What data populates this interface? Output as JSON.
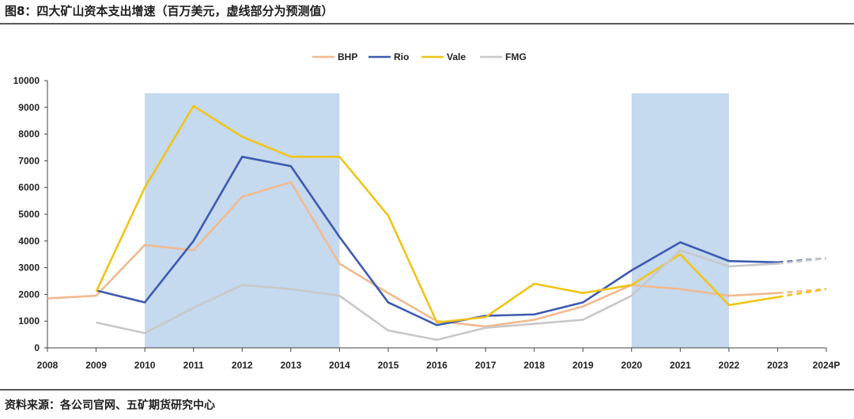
{
  "title": "图8：四大矿山资本支出增速（百万美元，虚线部分为预测值）",
  "source": "资料来源：各公司官网、五矿期货研究中心",
  "chart_data": {
    "type": "line",
    "title": "图8：四大矿山资本支出增速（百万美元，虚线部分为预测值）",
    "xlabel": "",
    "ylabel": "",
    "categories": [
      "2008",
      "2009",
      "2010",
      "2011",
      "2012",
      "2013",
      "2014",
      "2015",
      "2016",
      "2017",
      "2018",
      "2019",
      "2020",
      "2021",
      "2022",
      "2023",
      "2024P"
    ],
    "ylim": [
      0,
      10000
    ],
    "yticks": [
      "0",
      "1000",
      "2000",
      "3000",
      "4000",
      "5000",
      "6000",
      "7000",
      "8000",
      "9000",
      "10000"
    ],
    "legend_position": "top-center",
    "shaded_periods": [
      [
        "2010",
        "2014"
      ],
      [
        "2020",
        "2022"
      ]
    ],
    "forecast_from": "2023",
    "shade_color": "#c5d9ef",
    "series": [
      {
        "name": "BHP",
        "color": "#f2b98e",
        "values": [
          1850,
          1950,
          3850,
          3650,
          5650,
          6200,
          3150,
          2050,
          1000,
          800,
          1050,
          1550,
          2350,
          2200,
          1950,
          2050,
          2200
        ]
      },
      {
        "name": "Rio",
        "color": "#3d5ab0",
        "values": [
          null,
          2150,
          1700,
          4000,
          7150,
          6800,
          4150,
          1700,
          850,
          1200,
          1250,
          1700,
          2900,
          3950,
          3250,
          3200,
          3350
        ]
      },
      {
        "name": "Vale",
        "color": "#f0c419",
        "values": [
          null,
          2100,
          6000,
          9050,
          7900,
          7150,
          7150,
          4950,
          950,
          1150,
          2400,
          2050,
          2350,
          3500,
          1600,
          1900,
          2200
        ]
      },
      {
        "name": "FMG",
        "color": "#c8c8c8",
        "values": [
          null,
          950,
          550,
          1500,
          2350,
          2200,
          1950,
          650,
          300,
          750,
          900,
          1050,
          1950,
          3650,
          3050,
          3150,
          3350
        ]
      }
    ]
  }
}
